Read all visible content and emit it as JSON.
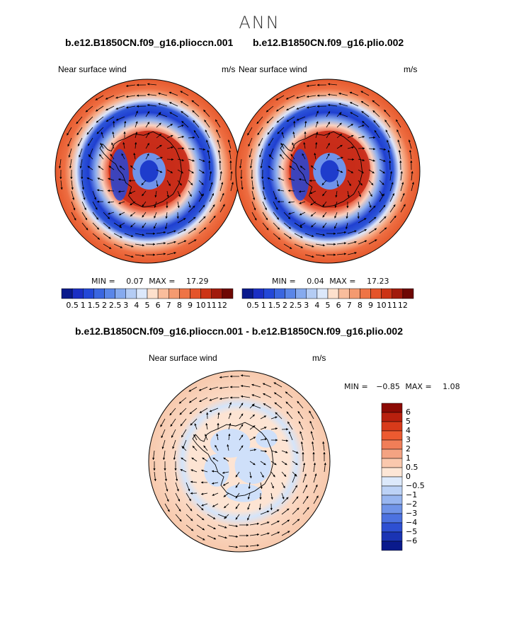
{
  "title": "ANN",
  "panels": [
    {
      "case": "b.e12.B1850CN.f09_g16.plioccn.001",
      "variable": "Near surface wind",
      "units": "m/s",
      "min_label": "MIN =",
      "min": "0.07",
      "max_label": "MAX =",
      "max": "17.29"
    },
    {
      "case": "b.e12.B1850CN.f09_g16.plio.002",
      "variable": "Near surface wind",
      "units": "m/s",
      "min_label": "MIN =",
      "min": "0.04",
      "max_label": "MAX =",
      "max": "17.23"
    }
  ],
  "colorbar": {
    "labels": [
      "0.5",
      "1",
      "1.5",
      "2",
      "2.5",
      "3",
      "4",
      "5",
      "6",
      "7",
      "8",
      "9",
      "10",
      "11",
      "12"
    ],
    "colors": [
      "#0a1a8c",
      "#1b2fc4",
      "#2348d8",
      "#3a66e0",
      "#5a86e8",
      "#86aaee",
      "#b4ccf4",
      "#dce8fb",
      "#fde0cc",
      "#f9bd9c",
      "#f49a70",
      "#ee7446",
      "#e4542a",
      "#cc3416",
      "#a11a0c",
      "#6e0804"
    ]
  },
  "difference": {
    "title": "b.e12.B1850CN.f09_g16.plioccn.001 - b.e12.B1850CN.f09_g16.plio.002",
    "variable": "Near surface wind",
    "units": "m/s",
    "min_label": "MIN =",
    "min": "−0.85",
    "max_label": "MAX =",
    "max": "1.08",
    "colorbar": {
      "labels": [
        "6",
        "5",
        "4",
        "3",
        "2",
        "1",
        "0.5",
        "0",
        "−0.5",
        "−1",
        "−2",
        "−3",
        "−4",
        "−5",
        "−6"
      ],
      "colors": [
        "#8c0a04",
        "#b8200e",
        "#d83a1a",
        "#ec5a30",
        "#f07e58",
        "#f4a382",
        "#fac8ad",
        "#fde6d6",
        "#dce9fb",
        "#bcd2f6",
        "#98b6f0",
        "#7094e8",
        "#4c72e0",
        "#2e50d2",
        "#1a34b4",
        "#0a1a8c"
      ]
    }
  }
}
